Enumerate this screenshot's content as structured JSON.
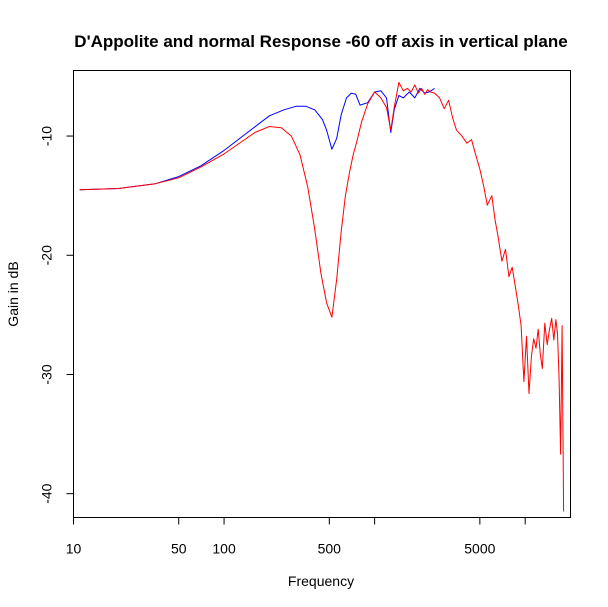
{
  "chart_data": {
    "type": "line",
    "title": "D'Appolite and normal Response -60 off axis in vertical plane",
    "xlabel": "Frequency",
    "ylabel": "Gain in dB",
    "x_scale": "log",
    "xlim": [
      10,
      20000
    ],
    "ylim": [
      -42,
      -4.5
    ],
    "x_ticks": [
      {
        "value": 10,
        "label": "10"
      },
      {
        "value": 50,
        "label": "50"
      },
      {
        "value": 100,
        "label": "100"
      },
      {
        "value": 500,
        "label": "500"
      },
      {
        "value": 1000,
        "label": ""
      },
      {
        "value": 5000,
        "label": "5000"
      },
      {
        "value": 10000,
        "label": ""
      }
    ],
    "y_ticks": [
      {
        "value": -10,
        "label": "-10"
      },
      {
        "value": -20,
        "label": "-20"
      },
      {
        "value": -30,
        "label": "-30"
      },
      {
        "value": -40,
        "label": "-40"
      }
    ],
    "grid": false,
    "legend": "none",
    "series": [
      {
        "color": "#0000ff",
        "x": [
          11,
          20,
          35,
          50,
          70,
          100,
          150,
          200,
          250,
          300,
          350,
          400,
          450,
          480,
          520,
          560,
          600,
          650,
          700,
          750,
          800,
          900,
          1000,
          1100,
          1200,
          1280,
          1350,
          1450,
          1550,
          1700,
          1850,
          2000,
          2150,
          2300,
          2500
        ],
        "y": [
          -14.5,
          -14.4,
          -14.0,
          -13.4,
          -12.5,
          -11.2,
          -9.5,
          -8.3,
          -7.8,
          -7.5,
          -7.5,
          -7.8,
          -8.6,
          -9.5,
          -11.1,
          -10.2,
          -8.2,
          -6.8,
          -6.4,
          -6.5,
          -7.4,
          -7.2,
          -6.3,
          -6.2,
          -6.8,
          -9.7,
          -7.8,
          -6.6,
          -6.8,
          -6.3,
          -6.8,
          -6.0,
          -6.4,
          -6.3,
          -6.0
        ]
      },
      {
        "color": "#ff0000",
        "x": [
          11,
          20,
          35,
          50,
          70,
          100,
          130,
          160,
          200,
          240,
          280,
          320,
          360,
          400,
          440,
          480,
          520,
          560,
          600,
          640,
          680,
          720,
          760,
          820,
          900,
          1000,
          1100,
          1200,
          1280,
          1350,
          1450,
          1550,
          1650,
          1750,
          1850,
          1950,
          2050,
          2150,
          2250,
          2350,
          2500,
          2700,
          2900,
          3100,
          3300,
          3500,
          3800,
          4100,
          4400,
          4700,
          5000,
          5300,
          5600,
          6000,
          6300,
          6600,
          7000,
          7400,
          7800,
          8200,
          8600,
          9000,
          9400,
          9800,
          10200,
          10600,
          11000,
          11400,
          11800,
          12200,
          12600,
          13000,
          13500,
          14000,
          14500,
          15000,
          15500,
          16000,
          16400,
          16800,
          17200,
          17600,
          18000
        ],
        "y": [
          -14.5,
          -14.4,
          -14.0,
          -13.5,
          -12.6,
          -11.5,
          -10.5,
          -9.7,
          -9.2,
          -9.3,
          -10.0,
          -11.6,
          -14.3,
          -17.8,
          -21.5,
          -24.0,
          -25.2,
          -22.0,
          -18.0,
          -15.0,
          -13.1,
          -11.6,
          -10.5,
          -8.8,
          -7.3,
          -6.3,
          -6.8,
          -7.6,
          -9.5,
          -7.6,
          -5.5,
          -6.2,
          -6.0,
          -6.3,
          -5.7,
          -6.4,
          -6.0,
          -6.5,
          -6.1,
          -6.3,
          -6.4,
          -6.8,
          -7.7,
          -7.0,
          -8.5,
          -9.5,
          -10.0,
          -10.6,
          -10.3,
          -11.6,
          -12.8,
          -14.2,
          -15.8,
          -15.0,
          -17.0,
          -18.4,
          -20.5,
          -19.5,
          -21.8,
          -21.0,
          -22.6,
          -24.2,
          -25.9,
          -30.6,
          -26.8,
          -31.6,
          -28.5,
          -27.0,
          -27.8,
          -26.2,
          -28.3,
          -29.5,
          -25.7,
          -27.5,
          -26.2,
          -25.3,
          -27.1,
          -25.4,
          -26.6,
          -30.4,
          -36.7,
          -25.9,
          -41.5
        ]
      }
    ]
  }
}
